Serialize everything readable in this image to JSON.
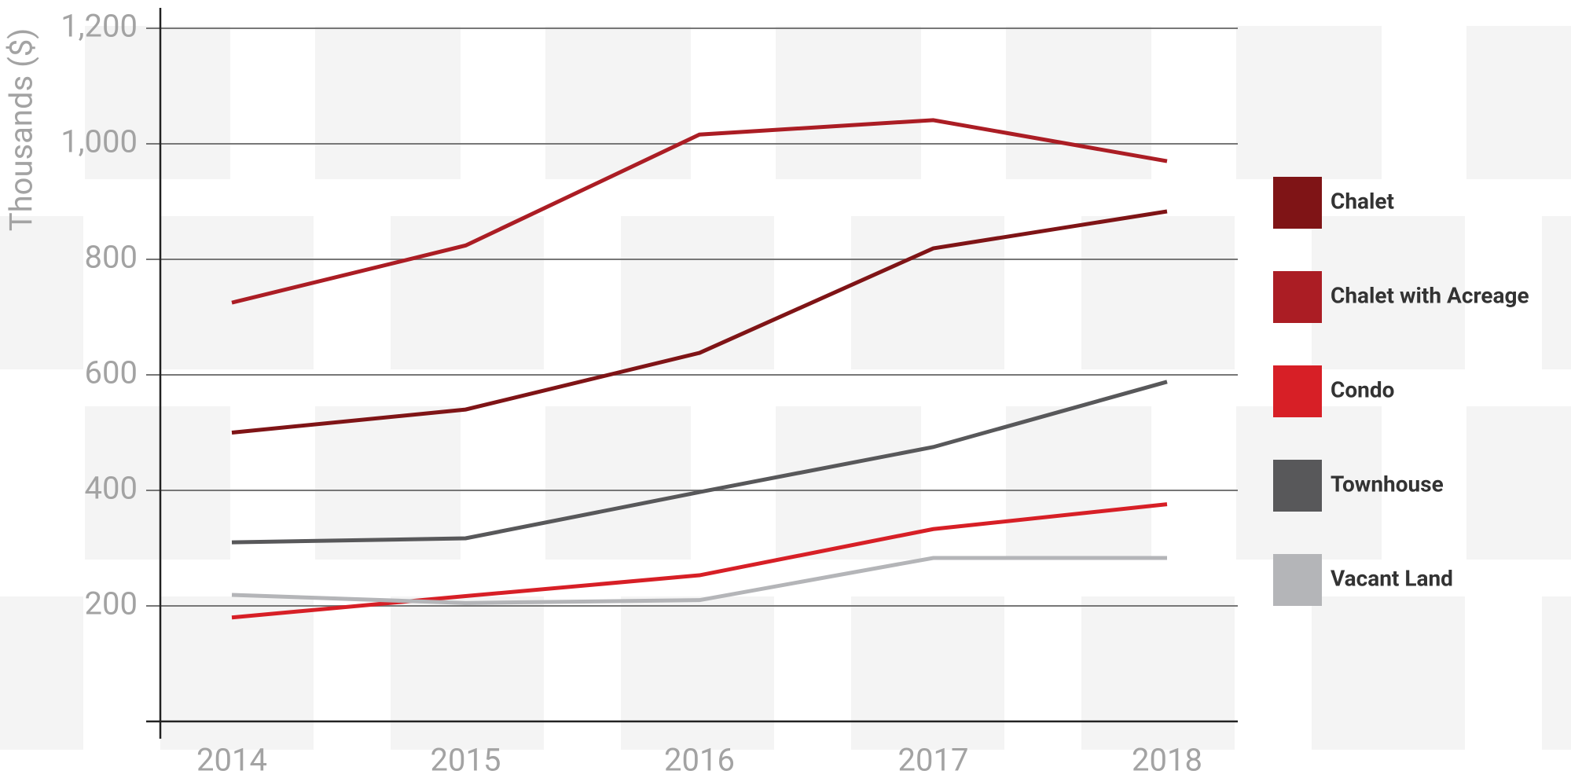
{
  "chart_data": {
    "type": "line",
    "y_label": "Thousands ($)",
    "categories": [
      "2014",
      "2015",
      "2016",
      "2017",
      "2018"
    ],
    "series": [
      {
        "name": "Chalet",
        "color": "#7f1416",
        "values": [
          500,
          540,
          638,
          819,
          883
        ]
      },
      {
        "name": "Chalet with Acreage",
        "color": "#ab1d24",
        "values": [
          725,
          824,
          1016,
          1041,
          970
        ]
      },
      {
        "name": "Condo",
        "color": "#d71f26",
        "values": [
          180,
          217,
          253,
          333,
          376
        ]
      },
      {
        "name": "Townhouse",
        "color": "#58585a",
        "values": [
          310,
          317,
          397,
          475,
          588
        ]
      },
      {
        "name": "Vacant Land",
        "color": "#b4b5b8",
        "values": [
          219,
          205,
          210,
          283,
          283
        ]
      }
    ],
    "ylim": [
      0,
      1200
    ],
    "yticks": [
      200,
      400,
      600,
      800,
      {
        "value": 1000,
        "label": "1,000"
      },
      {
        "value": 1200,
        "label": "1,200"
      }
    ],
    "grid": true,
    "legend": "right"
  }
}
